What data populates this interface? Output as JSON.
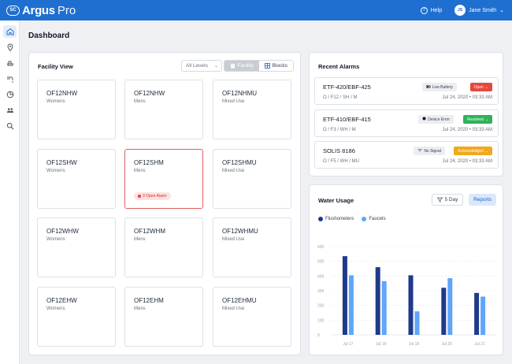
{
  "app": {
    "logo_badge": "SC",
    "logo_name": "Argus",
    "logo_sub": "Pro",
    "help_label": "Help",
    "user_initials": "JS",
    "user_name": "Jane Smith"
  },
  "sidebar": {
    "items": [
      {
        "icon": "home-icon",
        "active": true
      },
      {
        "icon": "location-pin-icon",
        "active": false
      },
      {
        "icon": "fixture-icon",
        "active": false
      },
      {
        "icon": "faucet-icon",
        "active": false
      },
      {
        "icon": "pie-chart-icon",
        "active": false
      },
      {
        "icon": "users-icon",
        "active": false
      },
      {
        "icon": "search-icon",
        "active": false
      }
    ]
  },
  "page": {
    "title": "Dashboard"
  },
  "facility": {
    "title": "Facility View",
    "levels_select": "All Levels",
    "toggle": {
      "facility_label": "Facility",
      "blocks_label": "Blocks"
    },
    "rooms": [
      {
        "name": "OF12NHW",
        "type": "Womens",
        "alert": ""
      },
      {
        "name": "OF12NHW",
        "type": "Mens",
        "alert": ""
      },
      {
        "name": "OF12NHMU",
        "type": "Mixed Use",
        "alert": ""
      },
      {
        "name": "OF12SHW",
        "type": "Womens",
        "alert": ""
      },
      {
        "name": "OF12SHM",
        "type": "Mens",
        "alert": "3 Open Alarm"
      },
      {
        "name": "OF12SHMU",
        "type": "Mixed Use",
        "alert": ""
      },
      {
        "name": "OF12WHW",
        "type": "Womens",
        "alert": ""
      },
      {
        "name": "OF12WHM",
        "type": "Mens",
        "alert": ""
      },
      {
        "name": "OF12WHMU",
        "type": "Mixed Use",
        "alert": ""
      },
      {
        "name": "OF12EHW",
        "type": "Womens",
        "alert": ""
      },
      {
        "name": "OF12EHM",
        "type": "Mens",
        "alert": ""
      },
      {
        "name": "OF12EHMU",
        "type": "Mixed Use",
        "alert": ""
      }
    ]
  },
  "alarms": {
    "title": "Recent Alarms",
    "items": [
      {
        "id": "ETF-420/EBF-425",
        "location": "O / F12 / SH / M",
        "time": "Jul 24, 2020 • 03:33 AM",
        "tag": "Low Battery",
        "tag_icon": "battery-icon",
        "status": "Open",
        "status_color": "#e5483f"
      },
      {
        "id": "ETF-410/EBF-415",
        "location": "O / F3 / WH / M",
        "time": "Jul 24, 2020 • 03:33 AM",
        "tag": "Device Error",
        "tag_icon": "error-dot-icon",
        "status": "Resolved",
        "status_color": "#2fb25a"
      },
      {
        "id": "SOLIS 8186",
        "location": "O / F5 / WH / MU",
        "time": "Jul 24, 2020 • 03:33 AM",
        "tag": "No Signal",
        "tag_icon": "no-signal-icon",
        "status": "Acknowledged",
        "status_color": "#f0a81c"
      }
    ]
  },
  "water": {
    "title": "Water Usage",
    "range_button": "5 Day",
    "reports_button": "Reports",
    "colors": {
      "flushometers": "#1f3a8a",
      "faucets": "#60a5fa"
    }
  },
  "chart_data": {
    "type": "bar",
    "categories": [
      "Jul 17",
      "Jul 18",
      "Jul 19",
      "Jul 20",
      "Jul 21"
    ],
    "series": [
      {
        "name": "Flushometers",
        "values": [
          535,
          460,
          405,
          320,
          285
        ]
      },
      {
        "name": "Faucets",
        "values": [
          405,
          365,
          160,
          385,
          260
        ]
      }
    ],
    "yticks": [
      "0",
      "100",
      "200",
      "300",
      "400",
      "500",
      "600"
    ],
    "ylim": [
      0,
      600
    ],
    "grid": true,
    "legend": "top-left"
  }
}
